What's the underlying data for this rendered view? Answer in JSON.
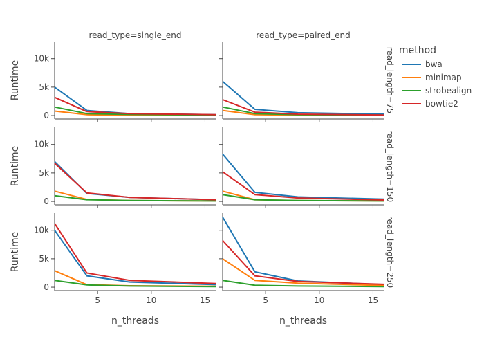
{
  "chart_data": {
    "type": "line",
    "xlabel": "n_threads",
    "ylabel": "Runtime",
    "x": [
      1,
      4,
      8,
      16
    ],
    "xlim": [
      1,
      16
    ],
    "xticks": [
      5,
      10,
      15
    ],
    "ylim": [
      -600,
      13000
    ],
    "yticks": [
      0,
      5000,
      10000
    ],
    "ytick_labels": [
      "0",
      "5k",
      "10k"
    ],
    "col_labels": [
      "read_type=single_end",
      "read_type=paired_end"
    ],
    "row_labels": [
      "read_length=75",
      "read_length=150",
      "read_length=250"
    ],
    "legend": {
      "title": "method",
      "position": "top-right",
      "entries": [
        {
          "name": "bwa",
          "color": "#1f77b4"
        },
        {
          "name": "minimap",
          "color": "#ff7f0e"
        },
        {
          "name": "strobealign",
          "color": "#2ca02c"
        },
        {
          "name": "bowtie2",
          "color": "#d62728"
        }
      ]
    },
    "panels": [
      {
        "row": 0,
        "col": 0,
        "series": [
          {
            "name": "bwa",
            "values": [
              5000,
              900,
              350,
              150
            ]
          },
          {
            "name": "minimap",
            "values": [
              800,
              150,
              80,
              50
            ]
          },
          {
            "name": "strobealign",
            "values": [
              1500,
              350,
              200,
              100
            ]
          },
          {
            "name": "bowtie2",
            "values": [
              3200,
              700,
              350,
              150
            ]
          }
        ]
      },
      {
        "row": 0,
        "col": 1,
        "series": [
          {
            "name": "bwa",
            "values": [
              6000,
              1100,
              500,
              250
            ]
          },
          {
            "name": "minimap",
            "values": [
              900,
              150,
              80,
              50
            ]
          },
          {
            "name": "strobealign",
            "values": [
              1500,
              350,
              150,
              80
            ]
          },
          {
            "name": "bowtie2",
            "values": [
              2800,
              600,
              250,
              100
            ]
          }
        ]
      },
      {
        "row": 1,
        "col": 0,
        "series": [
          {
            "name": "bwa",
            "values": [
              7000,
              1400,
              700,
              300
            ]
          },
          {
            "name": "minimap",
            "values": [
              1800,
              350,
              150,
              80
            ]
          },
          {
            "name": "strobealign",
            "values": [
              1000,
              300,
              150,
              80
            ]
          },
          {
            "name": "bowtie2",
            "values": [
              6700,
              1500,
              700,
              300
            ]
          }
        ]
      },
      {
        "row": 1,
        "col": 1,
        "series": [
          {
            "name": "bwa",
            "values": [
              8300,
              1600,
              800,
              400
            ]
          },
          {
            "name": "minimap",
            "values": [
              1800,
              300,
              150,
              80
            ]
          },
          {
            "name": "strobealign",
            "values": [
              1200,
              300,
              150,
              80
            ]
          },
          {
            "name": "bowtie2",
            "values": [
              5200,
              1200,
              600,
              250
            ]
          }
        ]
      },
      {
        "row": 2,
        "col": 0,
        "series": [
          {
            "name": "bwa",
            "values": [
              10000,
              2000,
              900,
              450
            ]
          },
          {
            "name": "minimap",
            "values": [
              2900,
              450,
              250,
              150
            ]
          },
          {
            "name": "strobealign",
            "values": [
              1200,
              400,
              200,
              100
            ]
          },
          {
            "name": "bowtie2",
            "values": [
              11200,
              2500,
              1200,
              650
            ]
          }
        ]
      },
      {
        "row": 2,
        "col": 1,
        "series": [
          {
            "name": "bwa",
            "values": [
              12300,
              2700,
              1100,
              450
            ]
          },
          {
            "name": "minimap",
            "values": [
              5000,
              1200,
              700,
              300
            ]
          },
          {
            "name": "strobealign",
            "values": [
              1200,
              350,
              200,
              100
            ]
          },
          {
            "name": "bowtie2",
            "values": [
              8200,
              2000,
              1000,
              500
            ]
          }
        ]
      }
    ]
  }
}
